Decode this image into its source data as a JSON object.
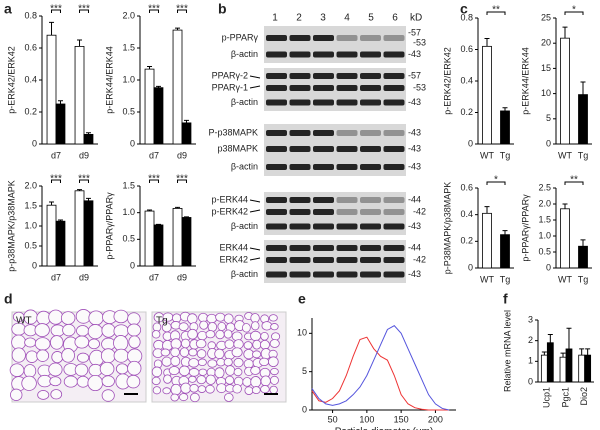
{
  "panel_letters": [
    "a",
    "b",
    "c",
    "d",
    "e",
    "f"
  ],
  "chart_data": [
    {
      "type": "bar",
      "ylabel": "p-ERK42/ERK42",
      "categories": [
        "d7",
        "d9"
      ],
      "ylim": [
        0,
        0.8
      ],
      "yticks": [
        0,
        0.2,
        0.4,
        0.6,
        0.8
      ],
      "series": [
        {
          "color": "#ffffff",
          "values": [
            0.68,
            0.61
          ],
          "errors": [
            0.08,
            0.04
          ]
        },
        {
          "color": "#000000",
          "values": [
            0.25,
            0.06
          ],
          "errors": [
            0.02,
            0.01
          ]
        }
      ],
      "significance": [
        "***",
        "***"
      ]
    },
    {
      "type": "bar",
      "ylabel": "p-ERK44/ERK44",
      "categories": [
        "d7",
        "d9"
      ],
      "ylim": [
        0,
        2.0
      ],
      "yticks": [
        0,
        0.5,
        {
          "value": 1,
          "label": "1.0"
        },
        1.5,
        {
          "value": 2,
          "label": "2.0"
        }
      ],
      "series": [
        {
          "color": "#ffffff",
          "values": [
            1.17,
            1.78
          ],
          "errors": [
            0.04,
            0.03
          ]
        },
        {
          "color": "#000000",
          "values": [
            0.88,
            0.33
          ],
          "errors": [
            0.02,
            0.04
          ]
        }
      ],
      "significance": [
        "***",
        "***"
      ]
    },
    {
      "type": "bar",
      "ylabel": "p-p38MAPK/p38MAPK",
      "categories": [
        "d7",
        "d9"
      ],
      "ylim": [
        0,
        2.0
      ],
      "yticks": [
        0,
        0.5,
        {
          "value": 1,
          "label": "1.0"
        },
        1.5,
        {
          "value": 2,
          "label": "2.0"
        }
      ],
      "series": [
        {
          "color": "#ffffff",
          "values": [
            1.52,
            1.88
          ],
          "errors": [
            0.08,
            0.03
          ]
        },
        {
          "color": "#000000",
          "values": [
            1.12,
            1.63
          ],
          "errors": [
            0.03,
            0.06
          ]
        }
      ],
      "significance": [
        "***",
        "***"
      ]
    },
    {
      "type": "bar",
      "ylabel": "p-PPARγ/PPARγ",
      "categories": [
        "d7",
        "d9"
      ],
      "ylim": [
        0,
        1.5
      ],
      "yticks": [
        0,
        0.5,
        {
          "value": 1,
          "label": "1.0"
        },
        1.5
      ],
      "series": [
        {
          "color": "#ffffff",
          "values": [
            1.03,
            1.08
          ],
          "errors": [
            0.02,
            0.02
          ]
        },
        {
          "color": "#000000",
          "values": [
            0.77,
            0.91
          ],
          "errors": [
            0.01,
            0.01
          ]
        }
      ],
      "significance": [
        "***",
        "***"
      ]
    },
    {
      "type": "bar",
      "ylabel": "p-ERK42/ERK42",
      "categories": [
        "WT",
        "Tg"
      ],
      "ylim": [
        0,
        0.8
      ],
      "yticks": [
        0,
        0.2,
        0.4,
        0.6,
        0.8
      ],
      "series": [
        {
          "colors": [
            "#ffffff",
            "#000000"
          ],
          "values": [
            0.62,
            0.21
          ],
          "errors": [
            0.05,
            0.02
          ]
        }
      ],
      "significance": "**"
    },
    {
      "type": "bar",
      "ylabel": "p-ERK44/ERK44",
      "categories": [
        "WT",
        "Tg"
      ],
      "ylim": [
        0,
        25
      ],
      "yticks": [
        0,
        5,
        10,
        15,
        20,
        25
      ],
      "series": [
        {
          "colors": [
            "#ffffff",
            "#000000"
          ],
          "values": [
            21,
            9.8
          ],
          "errors": [
            2.2,
            2.5
          ]
        }
      ],
      "significance": "*"
    },
    {
      "type": "bar",
      "ylabel": "p-P38MAPK/p38MAPK",
      "categories": [
        "WT",
        "Tg"
      ],
      "ylim": [
        0,
        0.6
      ],
      "yticks": [
        0,
        0.2,
        0.4,
        0.6
      ],
      "series": [
        {
          "colors": [
            "#ffffff",
            "#000000"
          ],
          "values": [
            0.41,
            0.25
          ],
          "errors": [
            0.05,
            0.03
          ]
        }
      ],
      "significance": "*"
    },
    {
      "type": "bar",
      "ylabel": "p-PPARγ/PPARγ",
      "categories": [
        "WT",
        "Tg"
      ],
      "ylim": [
        0,
        2.5
      ],
      "yticks": [
        0,
        0.5,
        {
          "value": 1,
          "label": "1.0"
        },
        1.5,
        {
          "value": 2,
          "label": "2.0"
        },
        2.5
      ],
      "series": [
        {
          "colors": [
            "#ffffff",
            "#000000"
          ],
          "values": [
            1.85,
            0.68
          ],
          "errors": [
            0.15,
            0.2
          ]
        }
      ],
      "significance": "**"
    },
    {
      "type": "line",
      "xlabel": "Particle diameter (μm)",
      "ylabel": "Number (%)",
      "x": [
        20,
        30,
        40,
        50,
        60,
        70,
        80,
        90,
        100,
        110,
        120,
        130,
        140,
        150,
        160,
        170,
        180,
        190,
        200,
        210,
        220
      ],
      "xlim": [
        20,
        230
      ],
      "xticks": [
        50,
        100,
        150,
        200
      ],
      "ylim": [
        0,
        12
      ],
      "yticks": [
        0,
        5,
        10
      ],
      "series": [
        {
          "color": "#ee3333",
          "values": [
            2.5,
            1.2,
            1.0,
            1.5,
            2.5,
            4.5,
            7,
            9.2,
            9.5,
            8,
            7,
            6.5,
            4.5,
            2,
            0.8,
            0.3,
            0.1,
            0,
            0,
            0,
            0
          ]
        },
        {
          "color": "#5555dd",
          "values": [
            2.8,
            1.5,
            0.8,
            0.6,
            0.8,
            1.2,
            2,
            3,
            4.5,
            6.5,
            8.5,
            10.5,
            11,
            10,
            8,
            6,
            4,
            2,
            0.8,
            0.2,
            0
          ]
        }
      ]
    },
    {
      "type": "bar",
      "ylabel": "Relative mRNA level",
      "categories": [
        "Ucp1",
        "Pgc1",
        "Dio2"
      ],
      "ylim": [
        0,
        3
      ],
      "yticks": [
        0,
        1,
        2,
        3
      ],
      "rotate_categories": true,
      "series": [
        {
          "color": "#ffffff",
          "values": [
            1.3,
            1.2,
            1.3
          ],
          "errors": [
            0.15,
            0.2,
            0.3
          ]
        },
        {
          "color": "#000000",
          "values": [
            1.9,
            1.6,
            1.3
          ],
          "errors": [
            0.4,
            1.0,
            0.3
          ]
        }
      ]
    }
  ],
  "blot": {
    "lanes": [
      "1",
      "2",
      "3",
      "4",
      "5",
      "6"
    ],
    "unit": "kD",
    "rows": [
      {
        "labels": [
          "p-PPARγ"
        ],
        "markers": [
          "-57",
          "-53"
        ]
      },
      {
        "labels": [
          "β-actin"
        ],
        "markers": [
          "-43"
        ]
      },
      {
        "labels": [
          "PPARγ-2",
          "PPARγ-1"
        ],
        "markers": [
          "-57",
          "-53"
        ]
      },
      {
        "labels": [
          "β-actin"
        ],
        "markers": [
          "-43"
        ]
      },
      {
        "labels": [
          "P-p38MAPK"
        ],
        "markers": [
          "-43"
        ]
      },
      {
        "labels": [
          "p38MAPK"
        ],
        "markers": [
          "-43"
        ]
      },
      {
        "labels": [
          "β-actin"
        ],
        "markers": [
          "-43"
        ]
      },
      {
        "labels": [
          "p-ERK44",
          "p-ERK42"
        ],
        "markers": [
          "-44",
          "-42"
        ]
      },
      {
        "labels": [
          "β-actin"
        ],
        "markers": [
          "-43"
        ]
      },
      {
        "labels": [
          "ERK44",
          "ERK42"
        ],
        "markers": [
          "-44",
          "-42"
        ]
      },
      {
        "labels": [
          "β-actin"
        ],
        "markers": [
          "-43"
        ]
      }
    ]
  },
  "micrograph": {
    "images": [
      "WT",
      "Tg"
    ]
  }
}
